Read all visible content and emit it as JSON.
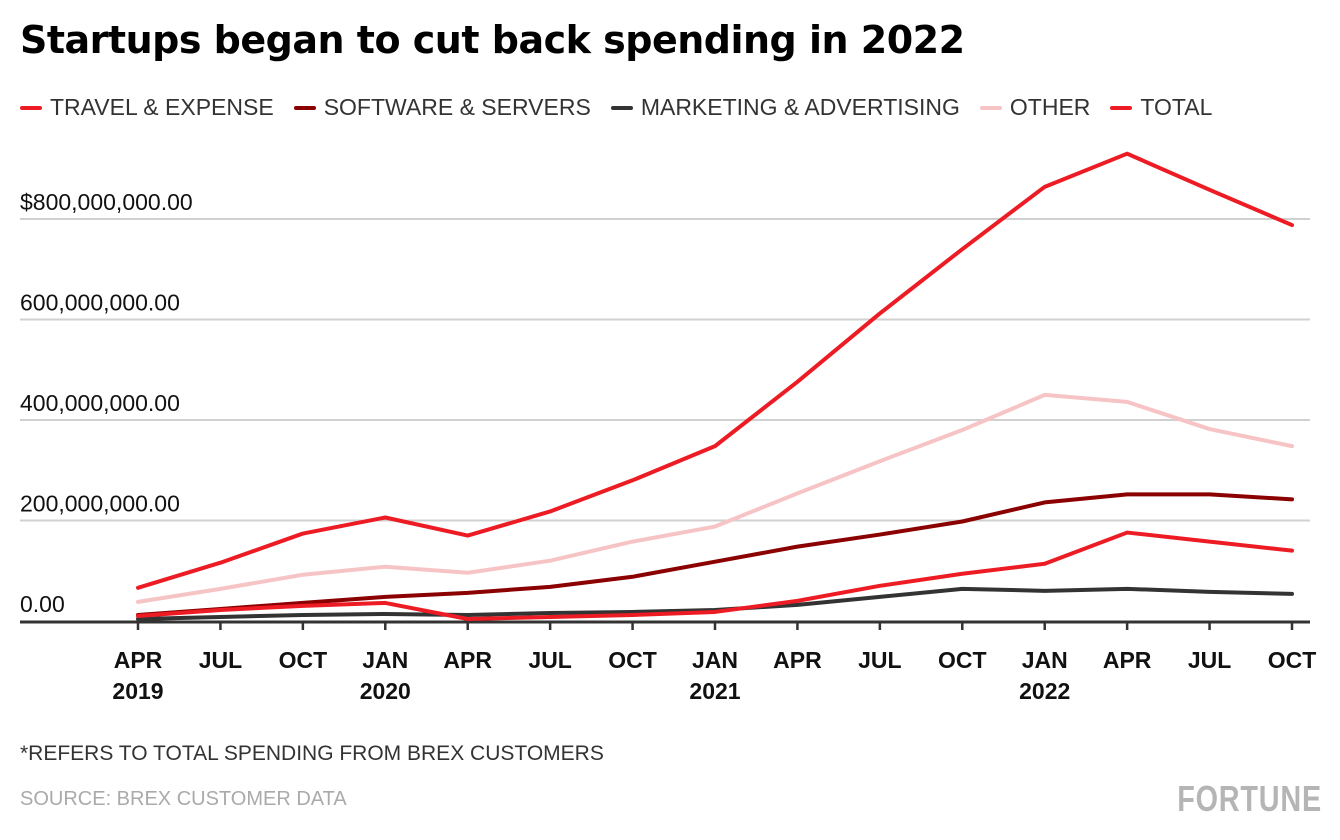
{
  "chart_data": {
    "type": "line",
    "title": "Startups began to cut back spending in 2022",
    "x": [
      "APR 2019",
      "JUL 2019",
      "OCT 2019",
      "JAN 2020",
      "APR 2020",
      "JUL 2020",
      "OCT 2020",
      "JAN 2021",
      "APR 2021",
      "JUL 2021",
      "OCT 2021",
      "JAN 2022",
      "APR 2022",
      "JUL 2022",
      "OCT 2022"
    ],
    "x_tick_labels": [
      {
        "month": "APR",
        "year": "2019"
      },
      {
        "month": "JUL",
        "year": ""
      },
      {
        "month": "OCT",
        "year": ""
      },
      {
        "month": "JAN",
        "year": "2020"
      },
      {
        "month": "APR",
        "year": ""
      },
      {
        "month": "JUL",
        "year": ""
      },
      {
        "month": "OCT",
        "year": ""
      },
      {
        "month": "JAN",
        "year": "2021"
      },
      {
        "month": "APR",
        "year": ""
      },
      {
        "month": "JUL",
        "year": ""
      },
      {
        "month": "OCT",
        "year": ""
      },
      {
        "month": "JAN",
        "year": "2022"
      },
      {
        "month": "APR",
        "year": ""
      },
      {
        "month": "JUL",
        "year": ""
      },
      {
        "month": "OCT",
        "year": ""
      }
    ],
    "y_ticks": [
      {
        "value": 0,
        "label": "0.00"
      },
      {
        "value": 200000000,
        "label": "200,000,000.00"
      },
      {
        "value": 400000000,
        "label": "400,000,000.00"
      },
      {
        "value": 600000000,
        "label": "600,000,000.00"
      },
      {
        "value": 800000000,
        "label": "$800,000,000.00"
      }
    ],
    "ylim": [
      0,
      950000000
    ],
    "grid": true,
    "legend_position": "top-left",
    "series": [
      {
        "name": "TRAVEL & EXPENSE",
        "color": "#ed1c24",
        "values": [
          10000000.0,
          22000000.0,
          30000000.0,
          36000000.0,
          4000000.0,
          8000000.0,
          12000000.0,
          18000000.0,
          40000000.0,
          70000000.0,
          94000000.0,
          114000000.0,
          176000000.0,
          158000000.0,
          140000000.0
        ]
      },
      {
        "name": "SOFTWARE & SERVERS",
        "color": "#8b0000",
        "values": [
          12000000.0,
          24000000.0,
          36000000.0,
          48000000.0,
          56000000.0,
          68000000.0,
          88000000.0,
          118000000.0,
          148000000.0,
          172000000.0,
          198000000.0,
          236000000.0,
          252000000.0,
          252000000.0,
          242000000.0
        ]
      },
      {
        "name": "MARKETING & ADVERTISING",
        "color": "#333333",
        "values": [
          4000000.0,
          8000000.0,
          12000000.0,
          14000000.0,
          12000000.0,
          16000000.0,
          18000000.0,
          22000000.0,
          32000000.0,
          48000000.0,
          64000000.0,
          60000000.0,
          64000000.0,
          58000000.0,
          54000000.0
        ]
      },
      {
        "name": "OTHER",
        "color": "#f7c4c6",
        "values": [
          38000000.0,
          64000000.0,
          92000000.0,
          108000000.0,
          96000000.0,
          120000000.0,
          158000000.0,
          188000000.0,
          254000000.0,
          318000000.0,
          380000000.0,
          450000000.0,
          436000000.0,
          382000000.0,
          348000000.0
        ]
      },
      {
        "name": "TOTAL",
        "color": "#ed1c24",
        "values": [
          66000000.0,
          116000000.0,
          174000000.0,
          206000000.0,
          170000000.0,
          218000000.0,
          280000000.0,
          348000000.0,
          476000000.0,
          612000000.0,
          740000000.0,
          864000000.0,
          930000000.0,
          858000000.0,
          788000000.0
        ]
      }
    ]
  },
  "footnote": "*REFERS TO TOTAL SPENDING FROM BREX CUSTOMERS",
  "source": "SOURCE: BREX CUSTOMER DATA",
  "logo": "FORTUNE"
}
